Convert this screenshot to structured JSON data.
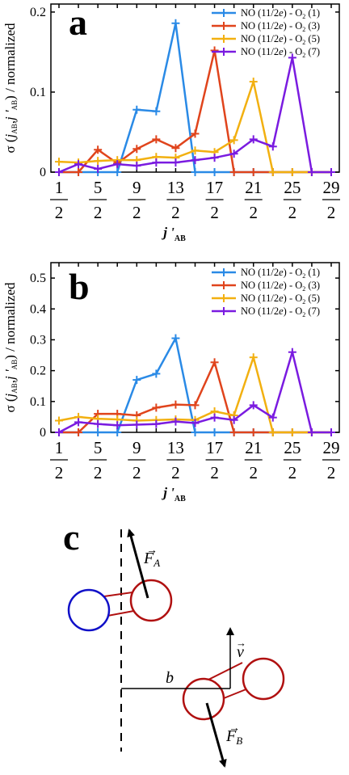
{
  "chart_data": [
    {
      "type": "line",
      "panel": "a",
      "xlabel": "j'AB",
      "ylabel": "σ (jAB, j'AB) / normalized",
      "ylim": [
        0,
        0.21
      ],
      "yticks": [
        0,
        0.1,
        0.2
      ],
      "ytick_labels": [
        "0",
        "0.1",
        "0.2"
      ],
      "x_tick_numerators": [
        "1",
        "5",
        "9",
        "13",
        "17",
        "21",
        "25",
        "29"
      ],
      "x_tick_denominator": "2",
      "x": [
        1,
        3,
        5,
        7,
        9,
        11,
        13,
        15,
        17,
        19,
        21,
        23,
        25,
        27,
        29
      ],
      "grid": false,
      "legend_position": "top-right",
      "series": [
        {
          "name": "NO (11/2e) - O2 (1)",
          "color": "#2a8ae6",
          "values": [
            0,
            0,
            0,
            0,
            0.078,
            0.076,
            0.186,
            0,
            0,
            0,
            0,
            0,
            0,
            0,
            0
          ]
        },
        {
          "name": "NO (11/2e) - O2 (3)",
          "color": "#e0441c",
          "values": [
            0,
            0,
            0.028,
            0.011,
            0.029,
            0.041,
            0.03,
            0.048,
            0.152,
            0,
            0,
            0,
            0,
            0,
            0
          ]
        },
        {
          "name": "NO (11/2e) - O2 (5)",
          "color": "#f2b010",
          "values": [
            0.013,
            0.012,
            0.014,
            0.015,
            0.015,
            0.019,
            0.018,
            0.027,
            0.025,
            0.04,
            0.113,
            0,
            0,
            0,
            0
          ]
        },
        {
          "name": "NO (11/2e) - O2 (7)",
          "color": "#7a1be0",
          "values": [
            0,
            0.01,
            0.004,
            0.01,
            0.008,
            0.012,
            0.012,
            0.015,
            0.018,
            0.023,
            0.041,
            0.032,
            0.143,
            0,
            0
          ]
        }
      ]
    },
    {
      "type": "line",
      "panel": "b",
      "xlabel": "j'AB",
      "ylabel": "σ (jAB, j'AB) / normalized",
      "ylim": [
        0,
        0.55
      ],
      "yticks": [
        0,
        0.1,
        0.2,
        0.3,
        0.4,
        0.5
      ],
      "ytick_labels": [
        "0",
        "0.1",
        "0.2",
        "0.3",
        "0.4",
        "0.5"
      ],
      "x_tick_numerators": [
        "1",
        "5",
        "9",
        "13",
        "17",
        "21",
        "25",
        "29"
      ],
      "x_tick_denominator": "2",
      "x": [
        1,
        3,
        5,
        7,
        9,
        11,
        13,
        15,
        17,
        19,
        21,
        23,
        25,
        27,
        29
      ],
      "grid": false,
      "legend_position": "top-right",
      "series": [
        {
          "name": "NO (11/2e) - O2 (1)",
          "color": "#2a8ae6",
          "values": [
            0,
            0,
            0,
            0,
            0.17,
            0.19,
            0.305,
            0,
            0,
            0,
            0,
            0,
            0,
            0,
            0
          ]
        },
        {
          "name": "NO (11/2e) - O2 (3)",
          "color": "#e0441c",
          "values": [
            0,
            0,
            0.06,
            0.06,
            0.055,
            0.08,
            0.09,
            0.088,
            0.227,
            0,
            0,
            0,
            0,
            0,
            0
          ]
        },
        {
          "name": "NO (11/2e) - O2 (5)",
          "color": "#f2b010",
          "values": [
            0.038,
            0.05,
            0.044,
            0.042,
            0.038,
            0.04,
            0.042,
            0.04,
            0.068,
            0.055,
            0.243,
            0,
            0,
            0,
            0
          ]
        },
        {
          "name": "NO (11/2e) - O2 (7)",
          "color": "#7a1be0",
          "values": [
            0,
            0.033,
            0.027,
            0.023,
            0.025,
            0.027,
            0.035,
            0.03,
            0.048,
            0.04,
            0.088,
            0.048,
            0.26,
            0,
            0
          ]
        }
      ]
    }
  ],
  "legend": {
    "prefix": "NO (11/2",
    "italic": "e",
    "mid": ") - O",
    "sub": "2",
    "suffixes": [
      " (1)",
      " (3)",
      " (5)",
      " (7)"
    ]
  },
  "axis_labels": {
    "y_sigma": "σ (",
    "y_j": "j",
    "y_sub": "AB",
    "y_comma": ",",
    "y_jprime": "j '",
    "y_tail": ") / normalized",
    "x_j": "j '",
    "x_sub": "AB"
  },
  "panels": {
    "a": "a",
    "b": "b",
    "c": "c"
  },
  "diagram": {
    "force_a": "F",
    "force_a_sub": "A",
    "force_b": "F",
    "force_b_sub": "B",
    "velocity": "v",
    "impact": "b",
    "colors": {
      "blue": "#1010c8",
      "red": "#b01010",
      "black": "#000000"
    }
  }
}
